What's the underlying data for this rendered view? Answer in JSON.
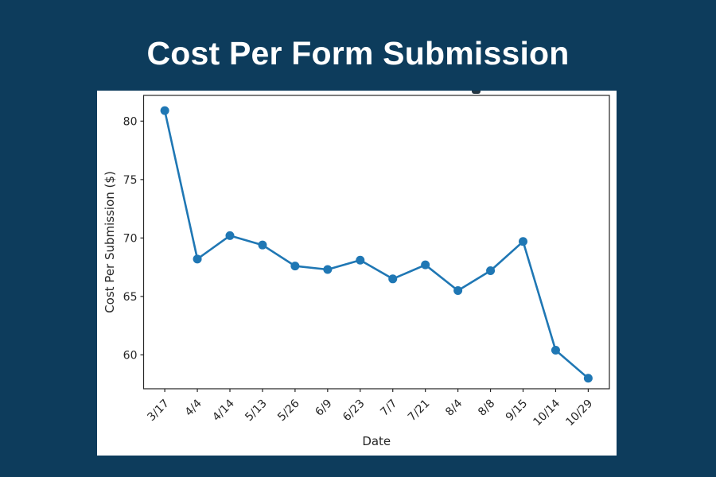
{
  "page": {
    "title": "Cost Per Form Submission",
    "background_color": "#0d3c5c",
    "title_color": "#ffffff",
    "card_color": "#ffffff"
  },
  "chart_data": {
    "type": "line",
    "title": "Cost Per Form Submission",
    "categories": [
      "3/17",
      "4/4",
      "4/14",
      "5/13",
      "5/26",
      "6/9",
      "6/23",
      "7/7",
      "7/21",
      "8/4",
      "8/8",
      "9/15",
      "10/14",
      "10/29"
    ],
    "values": [
      80.9,
      68.2,
      70.2,
      69.4,
      67.6,
      67.3,
      68.1,
      66.5,
      67.7,
      65.5,
      67.2,
      69.7,
      60.4,
      58.0
    ],
    "xlabel": "Date",
    "ylabel": "Cost Per Submission ($)",
    "yticks": [
      60,
      65,
      70,
      75,
      80
    ],
    "ylim": [
      57.1,
      82.2
    ],
    "x_tick_rotation": 45,
    "line_color": "#1f77b4",
    "marker": "circle",
    "marker_color": "#1f77b4",
    "axis_color": "#262626",
    "grid": false,
    "legend_position": "none"
  }
}
